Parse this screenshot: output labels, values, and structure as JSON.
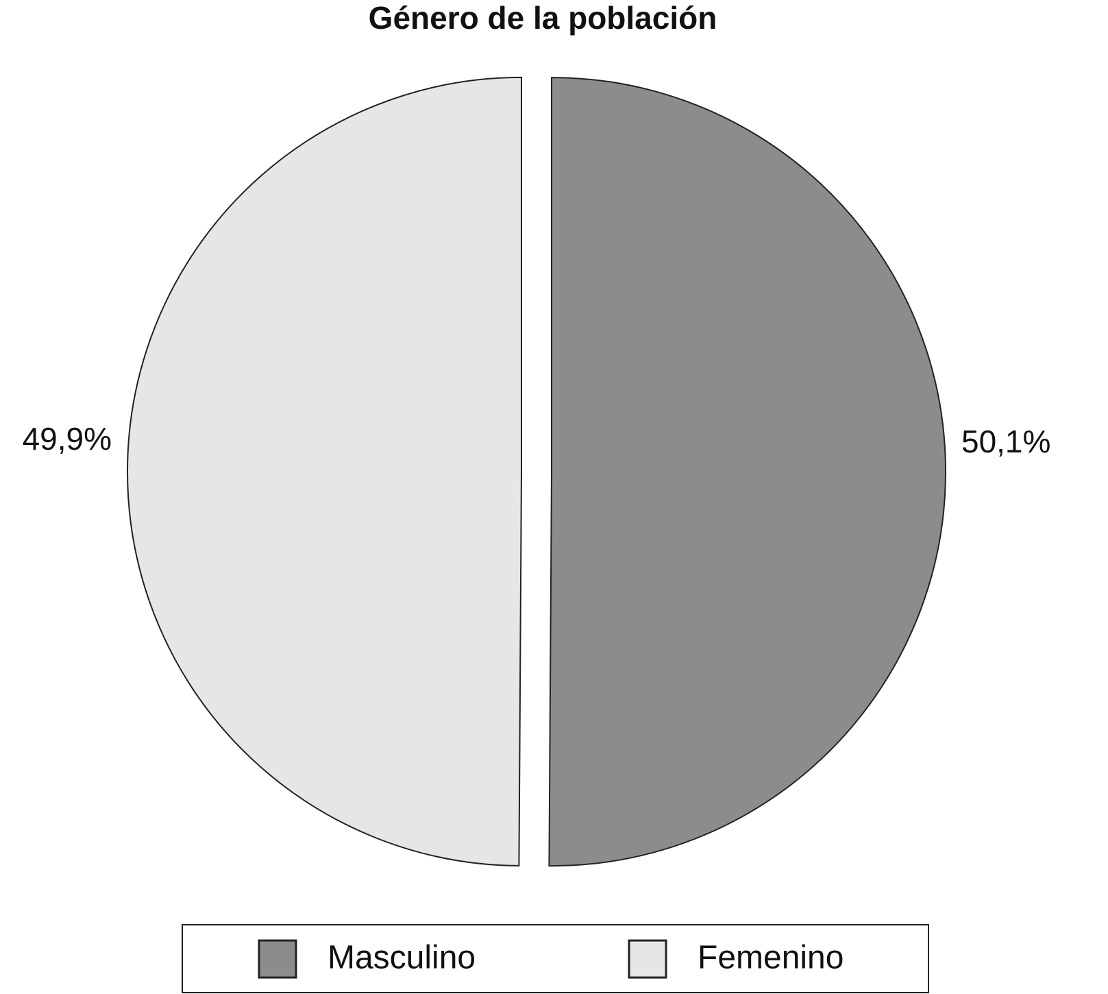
{
  "chart_data": {
    "type": "pie",
    "title": "Género de la población",
    "categories": [
      "Masculino",
      "Femenino"
    ],
    "values": [
      50.1,
      49.9
    ],
    "value_labels": [
      "50,1%",
      "49,9%"
    ],
    "colors": [
      "#8c8c8c",
      "#e6e6e6"
    ],
    "legend": "bottom"
  }
}
